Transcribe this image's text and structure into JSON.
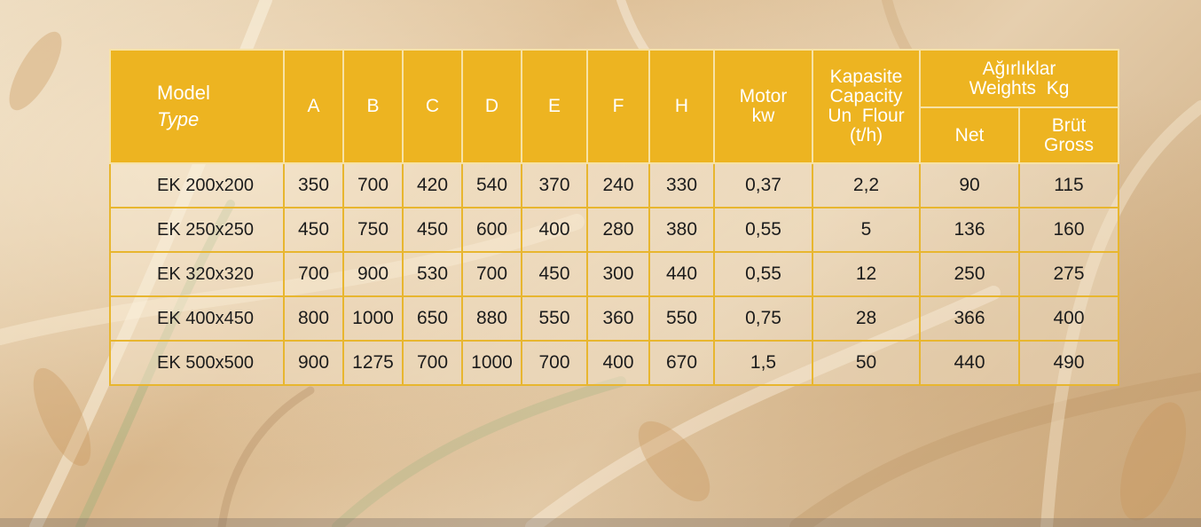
{
  "table": {
    "header": {
      "model": "Model",
      "model_en": "Type",
      "dimensions": [
        "A",
        "B",
        "C",
        "D",
        "E",
        "F",
        "H"
      ],
      "motor": "Motor",
      "motor_unit": "kw",
      "capacity_tr": "Kapasite",
      "capacity_en": "Capacity",
      "capacity_product": "Un  Flour",
      "capacity_unit": "(t/h)",
      "weights_tr": "Ağırlıklar",
      "weights_en": "Weights  Kg",
      "net": "Net",
      "gross_tr": "Brüt",
      "gross_en": "Gross"
    },
    "rows": [
      {
        "model": "EK 200x200",
        "dims": [
          "350",
          "700",
          "420",
          "540",
          "370",
          "240",
          "330"
        ],
        "motor": "0,37",
        "capacity": "2,2",
        "net": "90",
        "gross": "115"
      },
      {
        "model": "EK 250x250",
        "dims": [
          "450",
          "750",
          "450",
          "600",
          "400",
          "280",
          "380"
        ],
        "motor": "0,55",
        "capacity": "5",
        "net": "136",
        "gross": "160"
      },
      {
        "model": "EK 320x320",
        "dims": [
          "700",
          "900",
          "530",
          "700",
          "450",
          "300",
          "440"
        ],
        "motor": "0,55",
        "capacity": "12",
        "net": "250",
        "gross": "275"
      },
      {
        "model": "EK 400x450",
        "dims": [
          "800",
          "1000",
          "650",
          "880",
          "550",
          "360",
          "550"
        ],
        "motor": "0,75",
        "capacity": "28",
        "net": "366",
        "gross": "400"
      },
      {
        "model": "EK 500x500",
        "dims": [
          "900",
          "1275",
          "700",
          "1000",
          "700",
          "400",
          "670"
        ],
        "motor": "1,5",
        "capacity": "50",
        "net": "440",
        "gross": "490"
      }
    ]
  },
  "colors": {
    "header_bg": "#edb421",
    "header_text": "#ffffff",
    "grid_line": "#e8b62f",
    "body_text": "#1c1c1c"
  },
  "background": "wheat-field-photo"
}
